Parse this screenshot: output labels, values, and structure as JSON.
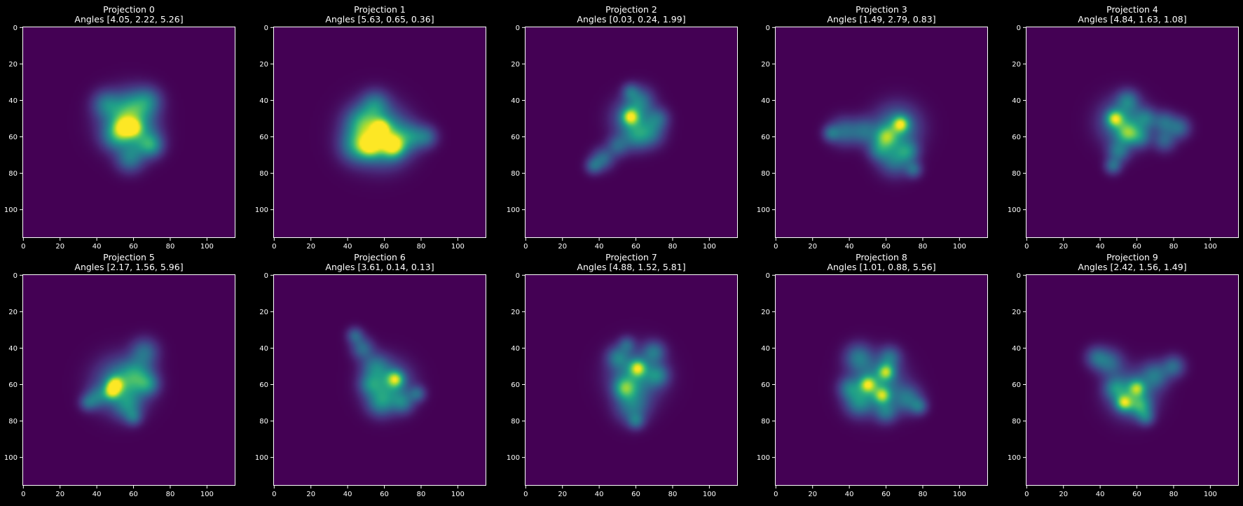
{
  "figure": {
    "background": "#000000",
    "colormap": "viridis"
  },
  "chart_data": [
    {
      "type": "heatmap",
      "title": "Projection 0",
      "subtitle": "Angles [4.05, 2.22, 5.26]",
      "xlim": [
        0,
        116
      ],
      "ylim": [
        116,
        0
      ],
      "xticks": [
        "0",
        "20",
        "40",
        "60",
        "80",
        "100"
      ],
      "yticks": [
        "0",
        "20",
        "40",
        "60",
        "80",
        "100"
      ],
      "blobs": [
        [
          56,
          52,
          9,
          0.7
        ],
        [
          60,
          45,
          7,
          0.55
        ],
        [
          45,
          42,
          5,
          0.45
        ],
        [
          68,
          40,
          5,
          0.4
        ],
        [
          66,
          62,
          6,
          0.5
        ],
        [
          58,
          72,
          5,
          0.5
        ],
        [
          50,
          60,
          5,
          0.45
        ],
        [
          55,
          55,
          4,
          0.85
        ],
        [
          60,
          55,
          3,
          0.7
        ],
        [
          70,
          65,
          4,
          0.45
        ]
      ]
    },
    {
      "type": "heatmap",
      "title": "Projection 1",
      "subtitle": "Angles [5.63, 0.65, 0.36]",
      "xlim": [
        0,
        116
      ],
      "ylim": [
        116,
        0
      ],
      "xticks": [
        "0",
        "20",
        "40",
        "60",
        "80",
        "100"
      ],
      "yticks": [
        "0",
        "20",
        "40",
        "60",
        "80",
        "100"
      ],
      "blobs": [
        [
          55,
          58,
          10,
          0.75
        ],
        [
          62,
          62,
          8,
          0.65
        ],
        [
          48,
          52,
          6,
          0.5
        ],
        [
          55,
          42,
          5,
          0.45
        ],
        [
          45,
          65,
          6,
          0.55
        ],
        [
          75,
          60,
          5,
          0.45
        ],
        [
          83,
          60,
          4,
          0.4
        ],
        [
          65,
          65,
          4,
          0.95
        ],
        [
          58,
          55,
          3,
          0.85
        ],
        [
          52,
          65,
          4,
          0.8
        ]
      ]
    },
    {
      "type": "heatmap",
      "title": "Projection 2",
      "subtitle": "Angles [0.03, 0.24, 1.99]",
      "xlim": [
        0,
        116
      ],
      "ylim": [
        116,
        0
      ],
      "xticks": [
        "0",
        "20",
        "40",
        "60",
        "80",
        "100"
      ],
      "yticks": [
        "0",
        "20",
        "40",
        "60",
        "80",
        "100"
      ],
      "blobs": [
        [
          58,
          50,
          7,
          0.6
        ],
        [
          57,
          49,
          3,
          0.95
        ],
        [
          62,
          40,
          5,
          0.45
        ],
        [
          68,
          58,
          5,
          0.45
        ],
        [
          60,
          60,
          5,
          0.45
        ],
        [
          50,
          65,
          4,
          0.4
        ],
        [
          42,
          72,
          4,
          0.45
        ],
        [
          37,
          76,
          3,
          0.4
        ],
        [
          72,
          50,
          4,
          0.4
        ],
        [
          57,
          35,
          3,
          0.35
        ]
      ]
    },
    {
      "type": "heatmap",
      "title": "Projection 3",
      "subtitle": "Angles [1.49, 2.79, 0.83]",
      "xlim": [
        0,
        116
      ],
      "ylim": [
        116,
        0
      ],
      "xticks": [
        "0",
        "20",
        "40",
        "60",
        "80",
        "100"
      ],
      "yticks": [
        "0",
        "20",
        "40",
        "60",
        "80",
        "100"
      ],
      "blobs": [
        [
          66,
          55,
          8,
          0.65
        ],
        [
          68,
          53,
          3,
          0.95
        ],
        [
          60,
          60,
          4,
          0.8
        ],
        [
          65,
          72,
          6,
          0.55
        ],
        [
          48,
          57,
          5,
          0.45
        ],
        [
          37,
          57,
          5,
          0.45
        ],
        [
          30,
          58,
          3,
          0.4
        ],
        [
          72,
          68,
          4,
          0.45
        ],
        [
          75,
          78,
          3,
          0.4
        ],
        [
          56,
          67,
          4,
          0.45
        ]
      ]
    },
    {
      "type": "heatmap",
      "title": "Projection 4",
      "subtitle": "Angles [4.84, 1.63, 1.08]",
      "xlim": [
        0,
        116
      ],
      "ylim": [
        116,
        0
      ],
      "xticks": [
        "0",
        "20",
        "40",
        "60",
        "80",
        "100"
      ],
      "yticks": [
        "0",
        "20",
        "40",
        "60",
        "80",
        "100"
      ],
      "blobs": [
        [
          52,
          52,
          8,
          0.65
        ],
        [
          48,
          50,
          3,
          0.95
        ],
        [
          55,
          58,
          4,
          0.7
        ],
        [
          50,
          68,
          4,
          0.5
        ],
        [
          47,
          76,
          3,
          0.45
        ],
        [
          55,
          40,
          4,
          0.45
        ],
        [
          65,
          50,
          4,
          0.45
        ],
        [
          75,
          52,
          4,
          0.45
        ],
        [
          83,
          55,
          4,
          0.45
        ],
        [
          75,
          62,
          4,
          0.4
        ],
        [
          62,
          60,
          4,
          0.45
        ]
      ]
    },
    {
      "type": "heatmap",
      "title": "Projection 5",
      "subtitle": "Angles [2.17, 1.56, 5.96]",
      "xlim": [
        0,
        116
      ],
      "ylim": [
        116,
        0
      ],
      "xticks": [
        "0",
        "20",
        "40",
        "60",
        "80",
        "100"
      ],
      "yticks": [
        "0",
        "20",
        "40",
        "60",
        "80",
        "100"
      ],
      "blobs": [
        [
          53,
          60,
          9,
          0.7
        ],
        [
          50,
          60,
          3,
          0.95
        ],
        [
          48,
          64,
          3,
          0.8
        ],
        [
          62,
          55,
          6,
          0.55
        ],
        [
          66,
          42,
          5,
          0.45
        ],
        [
          57,
          72,
          5,
          0.45
        ],
        [
          40,
          67,
          4,
          0.4
        ],
        [
          35,
          70,
          3,
          0.35
        ],
        [
          60,
          78,
          3,
          0.35
        ],
        [
          68,
          60,
          4,
          0.45
        ]
      ]
    },
    {
      "type": "heatmap",
      "title": "Projection 6",
      "subtitle": "Angles [3.61, 0.14, 0.13]",
      "xlim": [
        0,
        116
      ],
      "ylim": [
        116,
        0
      ],
      "xticks": [
        "0",
        "20",
        "40",
        "60",
        "80",
        "100"
      ],
      "yticks": [
        "0",
        "20",
        "40",
        "60",
        "80",
        "100"
      ],
      "blobs": [
        [
          62,
          60,
          8,
          0.65
        ],
        [
          66,
          57,
          3,
          0.95
        ],
        [
          55,
          50,
          5,
          0.45
        ],
        [
          48,
          40,
          4,
          0.45
        ],
        [
          44,
          33,
          3,
          0.4
        ],
        [
          58,
          70,
          5,
          0.5
        ],
        [
          70,
          70,
          4,
          0.45
        ],
        [
          78,
          65,
          3,
          0.4
        ],
        [
          52,
          60,
          4,
          0.4
        ]
      ]
    },
    {
      "type": "heatmap",
      "title": "Projection 7",
      "subtitle": "Angles [4.88, 1.52, 5.81]",
      "xlim": [
        0,
        116
      ],
      "ylim": [
        116,
        0
      ],
      "xticks": [
        "0",
        "20",
        "40",
        "60",
        "80",
        "100"
      ],
      "yticks": [
        "0",
        "20",
        "40",
        "60",
        "80",
        "100"
      ],
      "blobs": [
        [
          60,
          55,
          9,
          0.65
        ],
        [
          61,
          51,
          3,
          0.95
        ],
        [
          54,
          62,
          4,
          0.75
        ],
        [
          58,
          72,
          6,
          0.5
        ],
        [
          60,
          80,
          3,
          0.4
        ],
        [
          50,
          45,
          4,
          0.45
        ],
        [
          70,
          42,
          4,
          0.45
        ],
        [
          72,
          55,
          4,
          0.45
        ],
        [
          55,
          38,
          3,
          0.35
        ]
      ]
    },
    {
      "type": "heatmap",
      "title": "Projection 8",
      "subtitle": "Angles [1.01, 0.88, 5.56]",
      "xlim": [
        0,
        116
      ],
      "ylim": [
        116,
        0
      ],
      "xticks": [
        "0",
        "20",
        "40",
        "60",
        "80",
        "100"
      ],
      "yticks": [
        "0",
        "20",
        "40",
        "60",
        "80",
        "100"
      ],
      "blobs": [
        [
          55,
          60,
          9,
          0.7
        ],
        [
          60,
          53,
          3,
          0.9
        ],
        [
          50,
          60,
          3,
          0.9
        ],
        [
          58,
          66,
          3,
          0.85
        ],
        [
          45,
          45,
          5,
          0.5
        ],
        [
          62,
          45,
          4,
          0.45
        ],
        [
          72,
          68,
          5,
          0.5
        ],
        [
          78,
          72,
          3,
          0.4
        ],
        [
          45,
          70,
          5,
          0.5
        ],
        [
          60,
          75,
          4,
          0.45
        ],
        [
          40,
          62,
          4,
          0.45
        ]
      ]
    },
    {
      "type": "heatmap",
      "title": "Projection 9",
      "subtitle": "Angles [2.42, 1.56, 1.49]",
      "xlim": [
        0,
        116
      ],
      "ylim": [
        116,
        0
      ],
      "xticks": [
        "0",
        "20",
        "40",
        "60",
        "80",
        "100"
      ],
      "yticks": [
        "0",
        "20",
        "40",
        "60",
        "80",
        "100"
      ],
      "blobs": [
        [
          57,
          65,
          8,
          0.65
        ],
        [
          53,
          70,
          3,
          0.95
        ],
        [
          60,
          62,
          3,
          0.75
        ],
        [
          62,
          72,
          4,
          0.6
        ],
        [
          45,
          48,
          5,
          0.45
        ],
        [
          38,
          45,
          4,
          0.4
        ],
        [
          70,
          55,
          5,
          0.5
        ],
        [
          80,
          50,
          4,
          0.45
        ],
        [
          48,
          62,
          4,
          0.45
        ],
        [
          65,
          78,
          3,
          0.4
        ]
      ]
    }
  ]
}
